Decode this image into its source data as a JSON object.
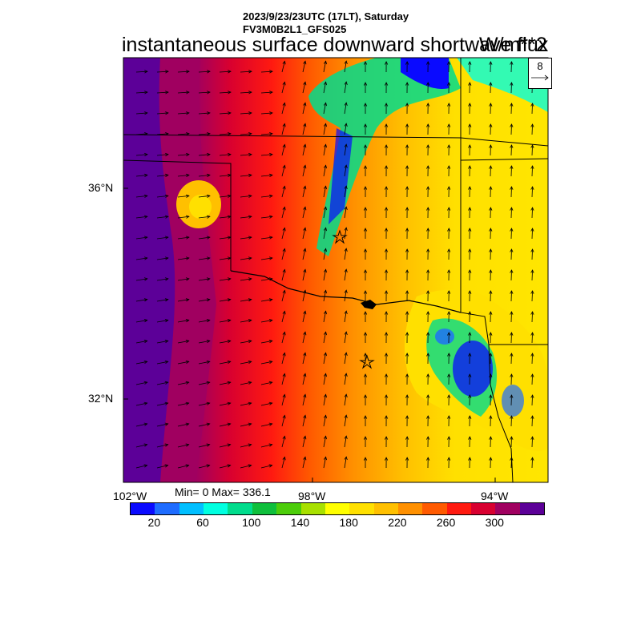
{
  "header": {
    "line1": "2023/9/23/23UTC (17LT), Saturday",
    "line2": "FV3M0B2L1_GFS025",
    "main_title": "instantaneous surface downward shortwave flux",
    "units_title": "W/m**2"
  },
  "reference_vector": {
    "value": "8"
  },
  "axes": {
    "lat_labels": [
      "36°N",
      "32°N"
    ],
    "lon_labels": [
      "102°W",
      "98°W",
      "94°W"
    ]
  },
  "stats": {
    "text": "Min= 0 Max= 336.1"
  },
  "colorbar": {
    "colors": [
      "#0a0aff",
      "#1e6cff",
      "#00bfff",
      "#00ffe0",
      "#00dc8c",
      "#0fbf3c",
      "#4ccd0a",
      "#a8e000",
      "#ffff00",
      "#ffe000",
      "#ffc000",
      "#ff9000",
      "#ff5a00",
      "#ff1a10",
      "#d80030",
      "#a00060",
      "#5c0098"
    ],
    "tick_labels": [
      "20",
      "60",
      "100",
      "140",
      "180",
      "220",
      "260",
      "300"
    ]
  }
}
